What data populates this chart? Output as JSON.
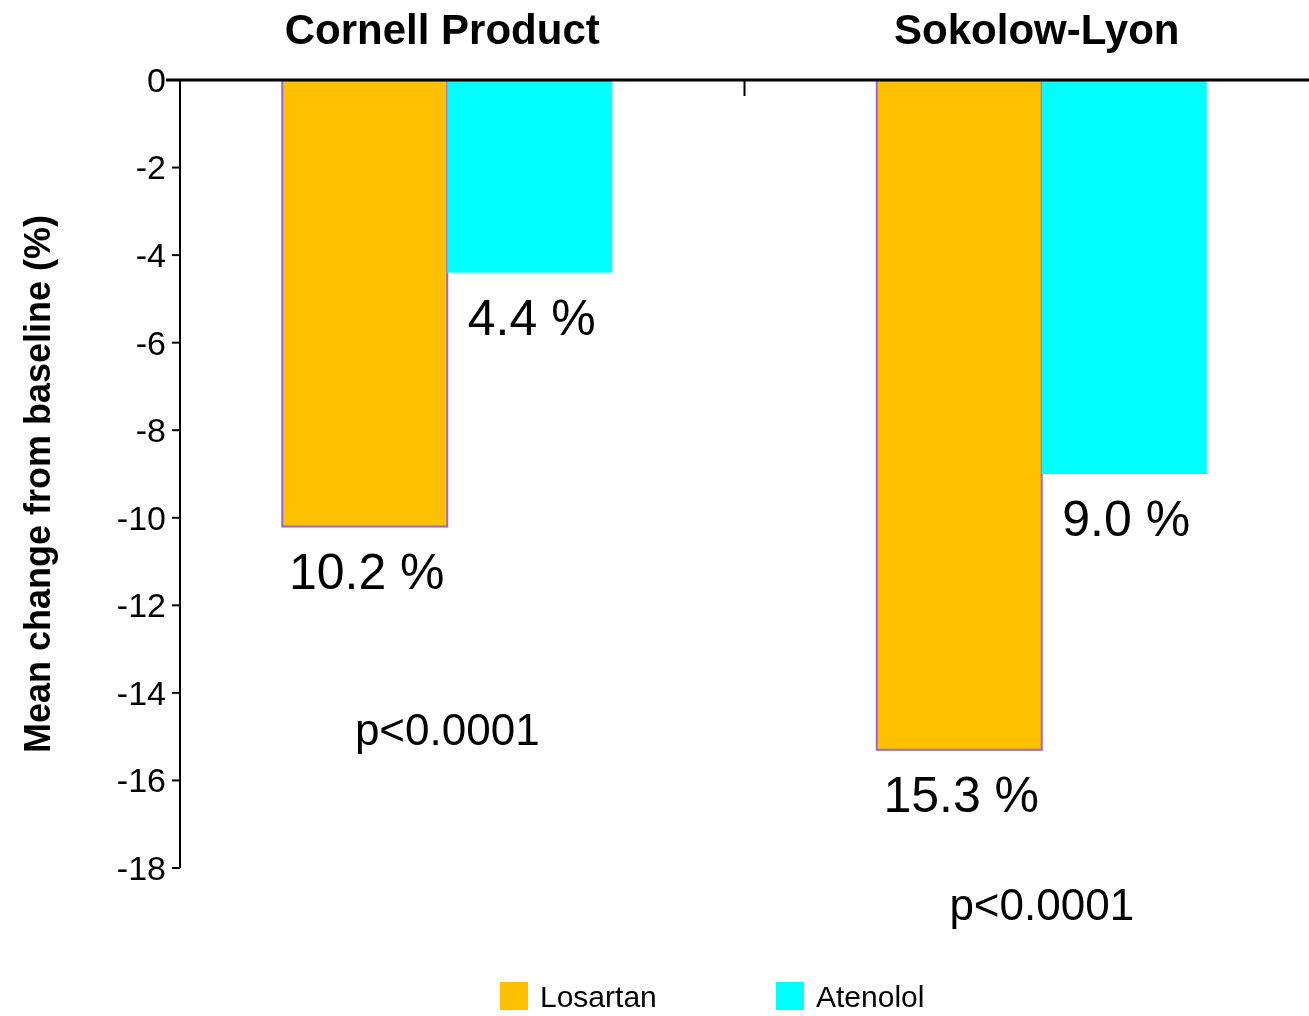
{
  "chart_data": {
    "type": "bar",
    "ylabel": "Mean change from baseline (%)",
    "categories": [
      "Cornell Product",
      "Sokolow-Lyon"
    ],
    "series": [
      {
        "name": "Losartan",
        "color": "#ffc000",
        "values": [
          -10.2,
          -15.3
        ]
      },
      {
        "name": "Atenolol",
        "color": "#00ffff",
        "values": [
          -4.4,
          -9.0
        ]
      }
    ],
    "ylim": [
      -18,
      0
    ],
    "yticks": [
      0,
      -2,
      -4,
      -6,
      -8,
      -10,
      -12,
      -14,
      -16,
      -18
    ],
    "annotations": [
      {
        "text": "10.2 %",
        "x": "Cornell Product",
        "y": -10.2
      },
      {
        "text": "4.4 %",
        "x": "Cornell Product",
        "y": -4.4
      },
      {
        "text": "15.3 %",
        "x": "Sokolow-Lyon",
        "y": -15.3
      },
      {
        "text": "9.0 %",
        "x": "Sokolow-Lyon",
        "y": -9.0
      },
      "p<0.0001",
      "p<0.0001"
    ],
    "legend": "bottom"
  }
}
